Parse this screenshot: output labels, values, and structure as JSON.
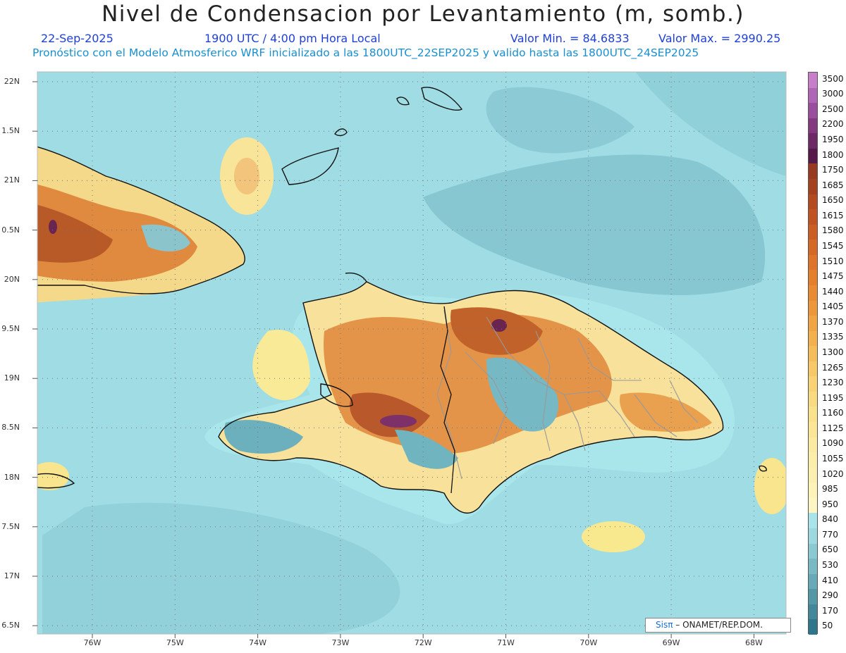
{
  "header": {
    "title": "Nivel de Condensacion por Levantamiento (m, somb.)",
    "date": "22-Sep-2025",
    "time": "1900 UTC / 4:00 pm Hora Local",
    "min_label": "Valor Min. = 84.6833",
    "max_label": "Valor Max. = 2990.25",
    "model_line": "Pronóstico con el Modelo Atmosferico WRF inicializado a las 1800UTC_22SEP2025 y valido hasta las  1800UTC_24SEP2025"
  },
  "map": {
    "lat_labels": [
      "22N",
      "1.5N",
      "21N",
      "0.5N",
      "20N",
      "9.5N",
      "19N",
      "8.5N",
      "18N",
      "7.5N",
      "17N",
      "6.5N"
    ],
    "lon_labels": [
      "76W",
      "75W",
      "74W",
      "73W",
      "72W",
      "71W",
      "70W",
      "69W",
      "68W"
    ],
    "ocean_color": "#9fdce4",
    "land_colors": [
      "#f7eda0",
      "#e89a4a",
      "#c0652a",
      "#6a2450",
      "#6fb4c0"
    ]
  },
  "colorbar": {
    "labels": [
      "3500",
      "3000",
      "2500",
      "2200",
      "1950",
      "1800",
      "1750",
      "1685",
      "1650",
      "1615",
      "1580",
      "1545",
      "1510",
      "1475",
      "1440",
      "1405",
      "1370",
      "1335",
      "1300",
      "1265",
      "1230",
      "1195",
      "1160",
      "1125",
      "1090",
      "1055",
      "1020",
      "985",
      "950",
      "840",
      "770",
      "650",
      "530",
      "410",
      "290",
      "170",
      "50"
    ],
    "colors": [
      "#c77fc9",
      "#b066b6",
      "#9a4e9e",
      "#83387f",
      "#6d2a66",
      "#561a48",
      "#963a22",
      "#a5411f",
      "#b44a20",
      "#c15322",
      "#cc5d23",
      "#d66826",
      "#de7329",
      "#e47f2d",
      "#e98b33",
      "#ed973a",
      "#f0a443",
      "#f3b04e",
      "#f5bc5a",
      "#f7c867",
      "#f8d274",
      "#f9da80",
      "#fae18c",
      "#fbe698",
      "#fbeaa2",
      "#fbedaa",
      "#fcf0b1",
      "#fdf3b8",
      "#fdf6c2",
      "#a8e4ea",
      "#9dd8df",
      "#8bc9d2",
      "#79b9c4",
      "#67a9b6",
      "#5498a8",
      "#42879a",
      "#2f768c"
    ]
  },
  "credit": {
    "logo": "Sisπ",
    "text": "– ONAMET/REP.DOM."
  }
}
